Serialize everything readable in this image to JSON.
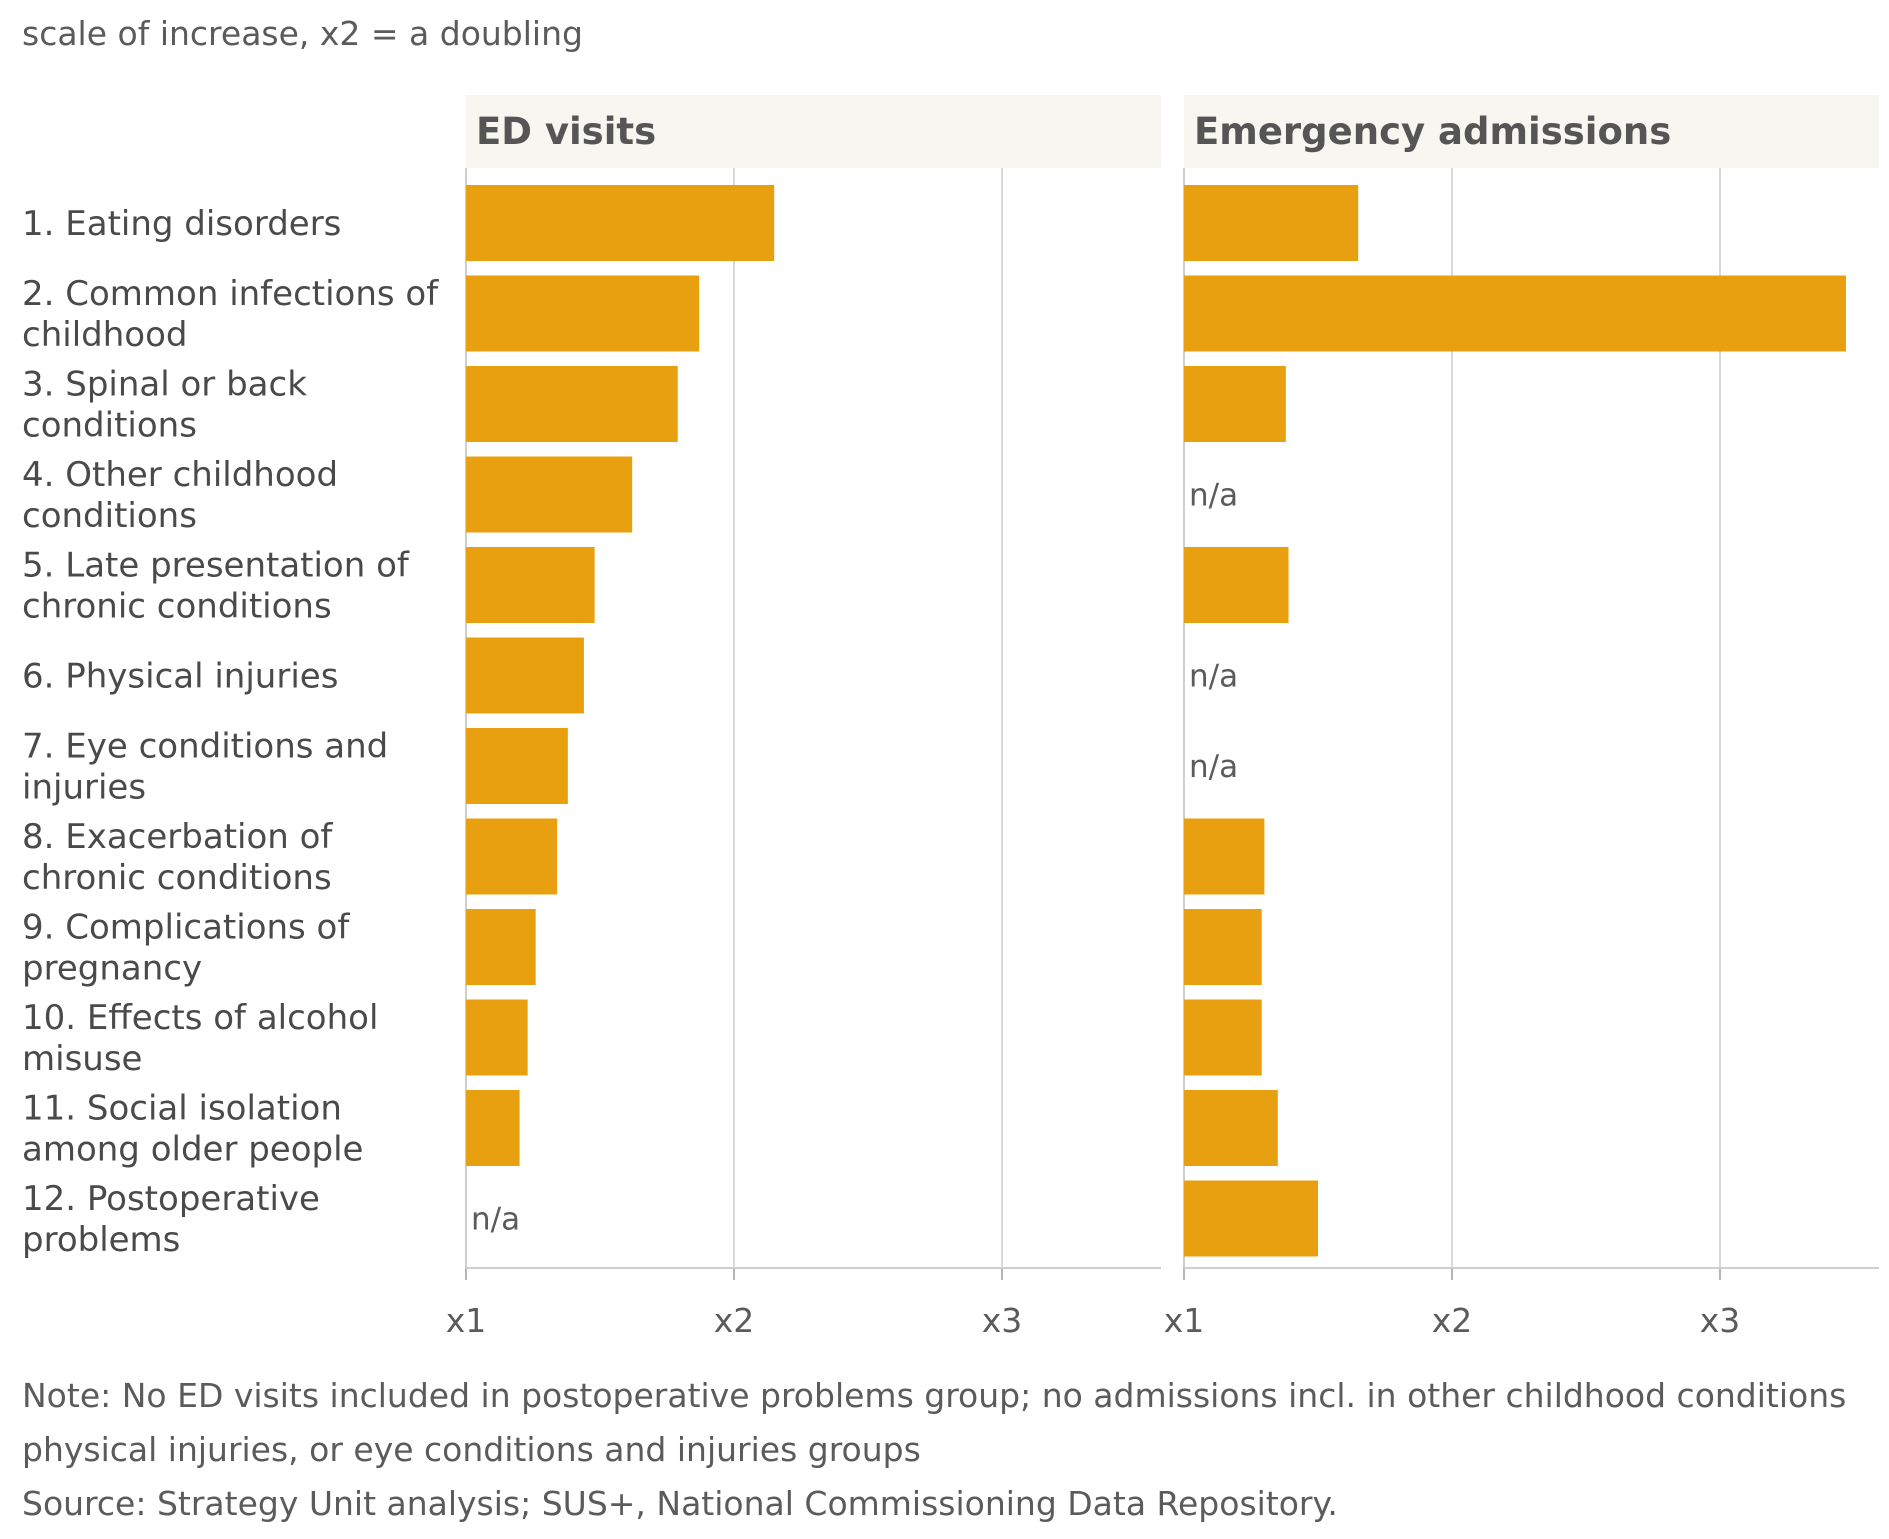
{
  "subtitle": "scale of increase, x2 = a doubling",
  "note": "Note: No ED visits included in postoperative problems group; no admissions incl. in other childhood conditions, physical injuries, or eye conditions and injuries groups",
  "source": "Source: Strategy Unit analysis; SUS+, National Commissioning Data Repository.",
  "colors": {
    "bar": "#e8a010",
    "panel_header_bg": "#f7f6f1",
    "grid": "#d9d9d9",
    "text": "#5b5b5b"
  },
  "chart_data": {
    "type": "bar",
    "orientation": "horizontal",
    "subtitle": "scale of increase, x2 = a doubling",
    "categories": [
      "1. Eating disorders",
      "2. Common infections of childhood",
      "3. Spinal or back conditions",
      "4. Other childhood conditions",
      "5. Late presentation of chronic conditions",
      "6. Physical injuries",
      "7. Eye conditions and injuries",
      "8. Exacerbation of chronic conditions",
      "9. Complications of pregnancy",
      "10. Effects of alcohol misuse",
      "11. Social isolation among older people",
      "12. Postoperative problems"
    ],
    "category_lines": [
      [
        "1. Eating disorders"
      ],
      [
        "2. Common infections of",
        "childhood"
      ],
      [
        "3. Spinal or back",
        "conditions"
      ],
      [
        "4. Other childhood",
        "conditions"
      ],
      [
        "5. Late presentation of",
        "chronic conditions"
      ],
      [
        "6. Physical injuries"
      ],
      [
        "7. Eye conditions and",
        "injuries"
      ],
      [
        "8. Exacerbation of",
        "chronic conditions"
      ],
      [
        "9. Complications of",
        "pregnancy"
      ],
      [
        "10. Effects of alcohol",
        "misuse"
      ],
      [
        "11. Social isolation",
        "among older people"
      ],
      [
        "12. Postoperative",
        "problems"
      ]
    ],
    "series": [
      {
        "name": "ED visits",
        "values": [
          2.15,
          1.87,
          1.79,
          1.62,
          1.48,
          1.44,
          1.38,
          1.34,
          1.26,
          1.23,
          1.2,
          null
        ]
      },
      {
        "name": "Emergency admissions",
        "values": [
          1.65,
          3.47,
          1.38,
          null,
          1.39,
          null,
          null,
          1.3,
          1.29,
          1.29,
          1.35,
          1.5
        ]
      }
    ],
    "missing_label": "n/a",
    "xlim": [
      1,
      3.6
    ],
    "xticks": [
      1,
      2,
      3
    ],
    "xtick_labels": [
      "x1",
      "x2",
      "x3"
    ],
    "grid": true
  }
}
